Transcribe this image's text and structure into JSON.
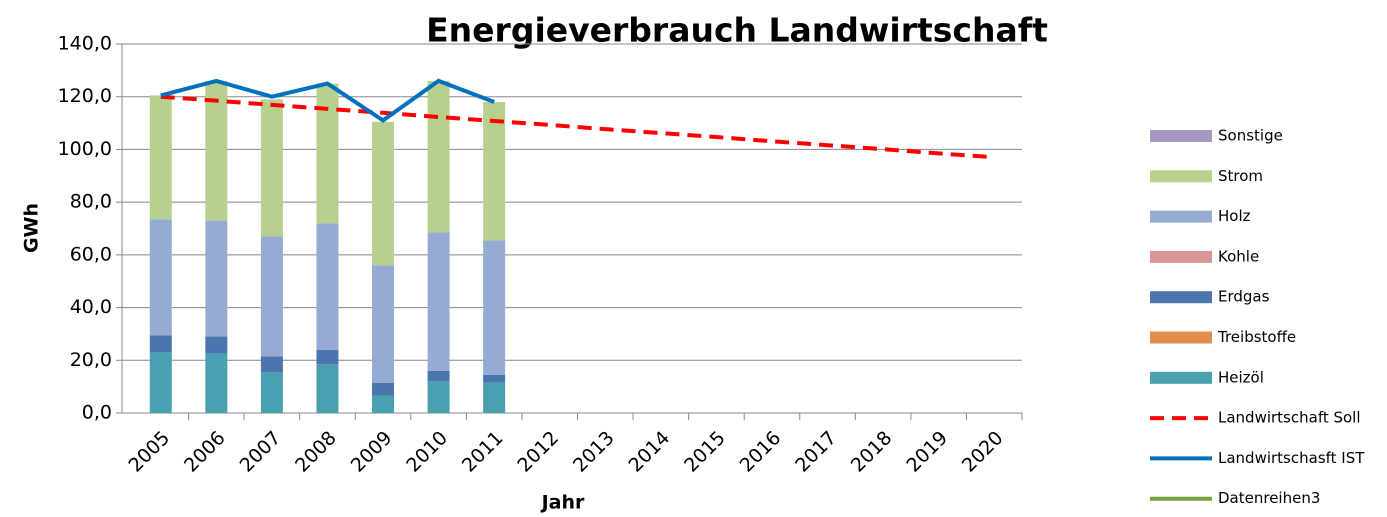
{
  "chart_data": {
    "type": "bar",
    "stacked": true,
    "title": "Energieverbrauch Landwirtschaft",
    "x_label": "Jahr",
    "y_label": "GWh",
    "categories": [
      "2005",
      "2006",
      "2007",
      "2008",
      "2009",
      "2010",
      "2011",
      "2012",
      "2013",
      "2014",
      "2015",
      "2016",
      "2017",
      "2018",
      "2019",
      "2020"
    ],
    "ylim": [
      0,
      140
    ],
    "yticks": [
      {
        "value": 0,
        "label": "0,0"
      },
      {
        "value": 20,
        "label": "20,0"
      },
      {
        "value": 40,
        "label": "40,0"
      },
      {
        "value": 60,
        "label": "60,0"
      },
      {
        "value": 80,
        "label": "80,0"
      },
      {
        "value": 100,
        "label": "100,0"
      },
      {
        "value": 120,
        "label": "120,0"
      },
      {
        "value": 140,
        "label": "140,0"
      }
    ],
    "grid": true,
    "legend": "right",
    "series": [
      {
        "name": "Sonstige",
        "kind": "bar",
        "color": "#a597c0",
        "values": [
          0,
          0,
          0,
          0,
          0,
          0,
          0,
          null,
          null,
          null,
          null,
          null,
          null,
          null,
          null,
          null
        ]
      },
      {
        "name": "Strom",
        "kind": "bar",
        "color": "#b7d08e",
        "values": [
          47,
          53,
          52,
          53,
          54.5,
          57.5,
          52.5,
          null,
          null,
          null,
          null,
          null,
          null,
          null,
          null,
          null
        ]
      },
      {
        "name": "Holz",
        "kind": "bar",
        "color": "#95abd3",
        "values": [
          44,
          44,
          45.5,
          48,
          44.5,
          52.5,
          51,
          null,
          null,
          null,
          null,
          null,
          null,
          null,
          null,
          null
        ]
      },
      {
        "name": "Kohle",
        "kind": "bar",
        "color": "#d99694",
        "values": [
          0,
          0,
          0,
          0,
          0,
          0,
          0,
          null,
          null,
          null,
          null,
          null,
          null,
          null,
          null,
          null
        ]
      },
      {
        "name": "Erdgas",
        "kind": "bar",
        "color": "#4a76ad",
        "values": [
          6.5,
          6.5,
          6,
          5.5,
          5,
          4,
          3,
          null,
          null,
          null,
          null,
          null,
          null,
          null,
          null,
          null
        ]
      },
      {
        "name": "Treibstoffe",
        "kind": "bar",
        "color": "#e08e49",
        "values": [
          0,
          0,
          0,
          0,
          0,
          0,
          0,
          null,
          null,
          null,
          null,
          null,
          null,
          null,
          null,
          null
        ]
      },
      {
        "name": "Heizöl",
        "kind": "bar",
        "color": "#4aa0b1",
        "values": [
          23,
          22.5,
          15.5,
          18.5,
          6.5,
          12,
          11.5,
          null,
          null,
          null,
          null,
          null,
          null,
          null,
          null,
          null
        ]
      },
      {
        "name": "Landwirtschaft Soll",
        "kind": "line",
        "dashed": true,
        "color": "#ff0000",
        "values": [
          120,
          118.5,
          116.9,
          115.4,
          113.9,
          112.3,
          110.8,
          109.3,
          107.7,
          106.2,
          104.7,
          103.1,
          101.6,
          100.1,
          98.5,
          97
        ]
      },
      {
        "name": "Landwirtschasft IST",
        "kind": "line",
        "dashed": false,
        "color": "#0070c0",
        "values": [
          120.5,
          126,
          120,
          125,
          111,
          126,
          118,
          null,
          null,
          null,
          null,
          null,
          null,
          null,
          null,
          null
        ]
      },
      {
        "name": "Datenreihen3",
        "kind": "line",
        "dashed": false,
        "color": "#77a33f",
        "values": [
          null,
          null,
          null,
          null,
          null,
          null,
          null,
          null,
          null,
          null,
          null,
          null,
          null,
          null,
          null,
          null
        ]
      }
    ]
  }
}
